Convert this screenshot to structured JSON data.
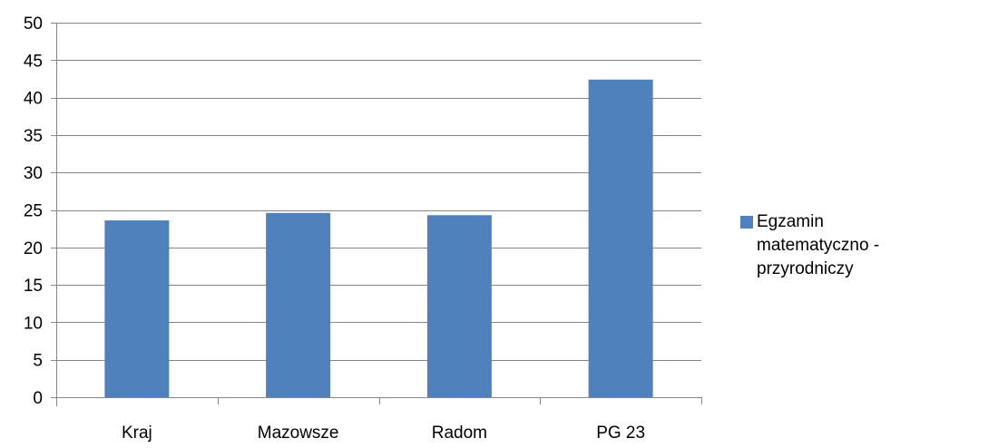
{
  "chart_data": {
    "type": "bar",
    "categories": [
      "Kraj",
      "Mazowsze",
      "Radom",
      "PG 23"
    ],
    "series": [
      {
        "name": "Egzamin matematyczno - przyrodniczy",
        "values": [
          23.6,
          24.6,
          24.3,
          42.4
        ],
        "color": "#4F81BD"
      }
    ],
    "ylim": [
      0,
      50
    ],
    "yticks": [
      "0",
      "5",
      "10",
      "15",
      "20",
      "25",
      "30",
      "35",
      "40",
      "45",
      "50"
    ],
    "grid": true,
    "legend_position": "right"
  },
  "colors": {
    "bar": "#4F81BD",
    "grid": "#868686",
    "axis": "#868686"
  }
}
